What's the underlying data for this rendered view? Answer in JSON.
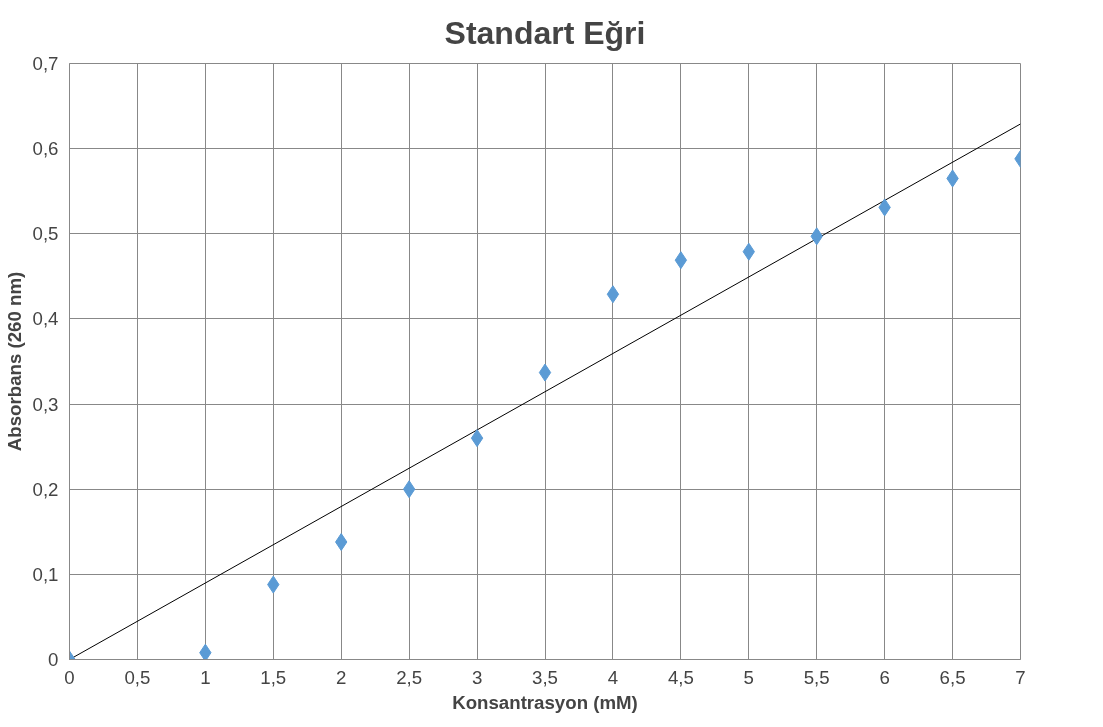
{
  "chart_data": {
    "type": "scatter",
    "title": "Standart Eğri",
    "xlabel": "Konsantrasyon (mM)",
    "ylabel": "Absorbans (260 nm)",
    "xlim": [
      0,
      7
    ],
    "ylim": [
      0,
      0.7
    ],
    "xticks": [
      0,
      {
        "value": 0.5,
        "label": "0,5"
      },
      1,
      {
        "value": 1.5,
        "label": "1,5"
      },
      2,
      {
        "value": 2.5,
        "label": "2,5"
      },
      3,
      {
        "value": 3.5,
        "label": "3,5"
      },
      4,
      {
        "value": 4.5,
        "label": "4,5"
      },
      5,
      {
        "value": 5.5,
        "label": "5,5"
      },
      6,
      {
        "value": 6.5,
        "label": "6,5"
      },
      7
    ],
    "yticks": [
      0,
      {
        "value": 0.1,
        "label": "0,1"
      },
      {
        "value": 0.2,
        "label": "0,2"
      },
      {
        "value": 0.3,
        "label": "0,3"
      },
      {
        "value": 0.4,
        "label": "0,4"
      },
      {
        "value": 0.5,
        "label": "0,5"
      },
      {
        "value": 0.6,
        "label": "0,6"
      },
      {
        "value": 0.7,
        "label": "0,7"
      }
    ],
    "grid": true,
    "series": [
      {
        "marker": "diamond",
        "color": "#5b9bd5",
        "x": [
          0,
          1,
          1.5,
          2,
          2.5,
          3,
          3.5,
          4,
          4.5,
          5,
          5.5,
          6,
          6.5,
          7
        ],
        "values": [
          0,
          0.008,
          0.088,
          0.138,
          0.2,
          0.26,
          0.337,
          0.429,
          0.469,
          0.479,
          0.497,
          0.531,
          0.565,
          0.588
        ]
      },
      {
        "type": "line",
        "color": "#000000",
        "x": [
          0,
          7
        ],
        "values": [
          0,
          0.629
        ]
      }
    ]
  }
}
